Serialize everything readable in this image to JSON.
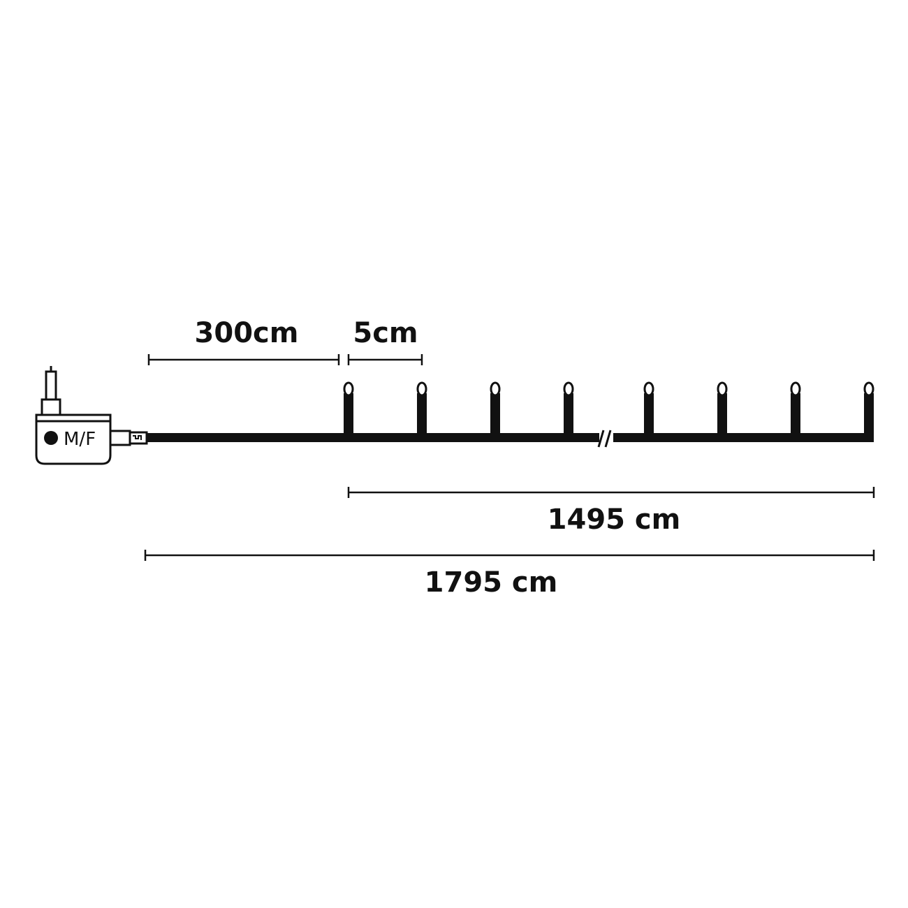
{
  "diagram": {
    "controller_label": "M/F",
    "dimensions": {
      "lead_cable": "300cm",
      "bulb_spacing": "5cm",
      "lit_length": "1495 cm",
      "total_length": "1795 cm"
    },
    "bulb_count_visible": 8,
    "colors": {
      "ink": "#111111",
      "background": "#ffffff"
    }
  }
}
